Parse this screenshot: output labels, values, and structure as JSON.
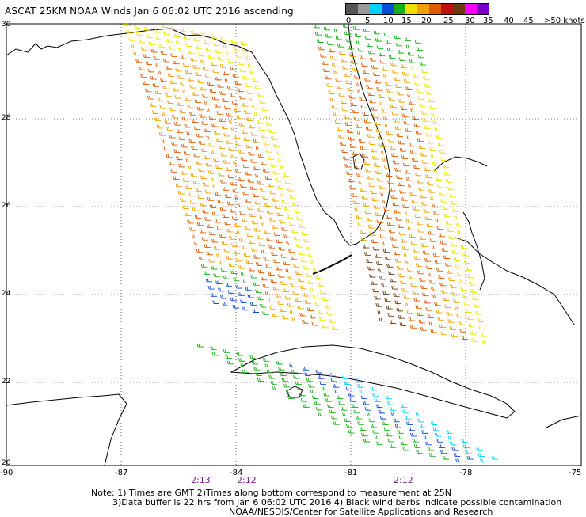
{
  "title": "ASCAT 25KM NOAA Winds Jan  6 06:02 UTC 2016 ascending",
  "legend": {
    "labels": [
      "0",
      "5",
      "10",
      "15",
      "20",
      "25",
      "30",
      "35",
      "40",
      "45",
      ">50 knots"
    ],
    "colors": [
      "#555555",
      "#9a9a9a",
      "#00d0ff",
      "#0a4bd8",
      "#18b018",
      "#f0e000",
      "#f0a000",
      "#e05a00",
      "#c01010",
      "#6b3a10",
      "#ff00ff",
      "#7a00d0"
    ]
  },
  "axes": {
    "x_ticks": [
      "-90",
      "-87",
      "-84",
      "-81",
      "-78",
      "-75"
    ],
    "y_ticks": [
      "30",
      "28",
      "26",
      "24",
      "22",
      "20"
    ]
  },
  "pass_times": [
    "2:13",
    "2:12",
    "2:12"
  ],
  "footer": {
    "line1": "Note: 1) Times are GMT 2)Times along bottom correspond to measurement at 25N",
    "line2": "3)Data buffer is 22 hrs from Jan  6 06:02 UTC 2016 4) Black wind barbs indicate possible contamination",
    "line3": "NOAA/NESDIS/Center for Satellite Applications and Research"
  }
}
